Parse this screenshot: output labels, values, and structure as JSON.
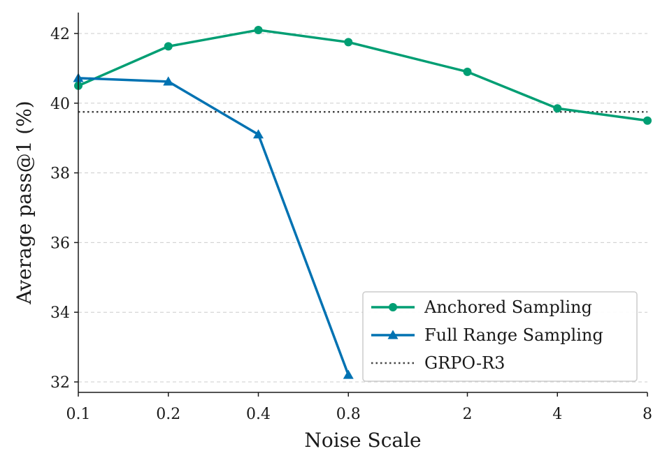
{
  "chart_data": {
    "type": "line",
    "xlabel": "Noise Scale",
    "ylabel": "Average pass@1 (%)",
    "x_scale": "log2",
    "xlim": [
      0.1,
      8
    ],
    "ylim": [
      31.7,
      42.6
    ],
    "x_ticks": [
      {
        "value": 0.1,
        "label": "0.1"
      },
      {
        "value": 0.2,
        "label": "0.2"
      },
      {
        "value": 0.4,
        "label": "0.4"
      },
      {
        "value": 0.8,
        "label": "0.8"
      },
      {
        "value": 2,
        "label": "2"
      },
      {
        "value": 4,
        "label": "4"
      },
      {
        "value": 8,
        "label": "8"
      }
    ],
    "y_ticks": [
      {
        "value": 32,
        "label": "32"
      },
      {
        "value": 34,
        "label": "34"
      },
      {
        "value": 36,
        "label": "36"
      },
      {
        "value": 38,
        "label": "38"
      },
      {
        "value": 40,
        "label": "40"
      },
      {
        "value": 42,
        "label": "42"
      }
    ],
    "grid": "horizontal-dashed",
    "legend_position": "lower-right",
    "series": [
      {
        "name": "Anchored Sampling",
        "color": "#009e73",
        "marker": "circle",
        "points": [
          {
            "x": 0.1,
            "y": 40.5
          },
          {
            "x": 0.2,
            "y": 41.63
          },
          {
            "x": 0.4,
            "y": 42.1
          },
          {
            "x": 0.8,
            "y": 41.75
          },
          {
            "x": 2,
            "y": 40.9
          },
          {
            "x": 4,
            "y": 39.85
          },
          {
            "x": 8,
            "y": 39.5
          }
        ]
      },
      {
        "name": "Full Range Sampling",
        "color": "#0072b2",
        "marker": "triangle",
        "points": [
          {
            "x": 0.1,
            "y": 40.72
          },
          {
            "x": 0.2,
            "y": 40.62
          },
          {
            "x": 0.4,
            "y": 39.1
          },
          {
            "x": 0.8,
            "y": 32.2
          }
        ]
      }
    ],
    "reference_lines": [
      {
        "name": "GRPO-R3",
        "y": 39.75,
        "color": "#444444",
        "style": "dotted"
      }
    ]
  }
}
